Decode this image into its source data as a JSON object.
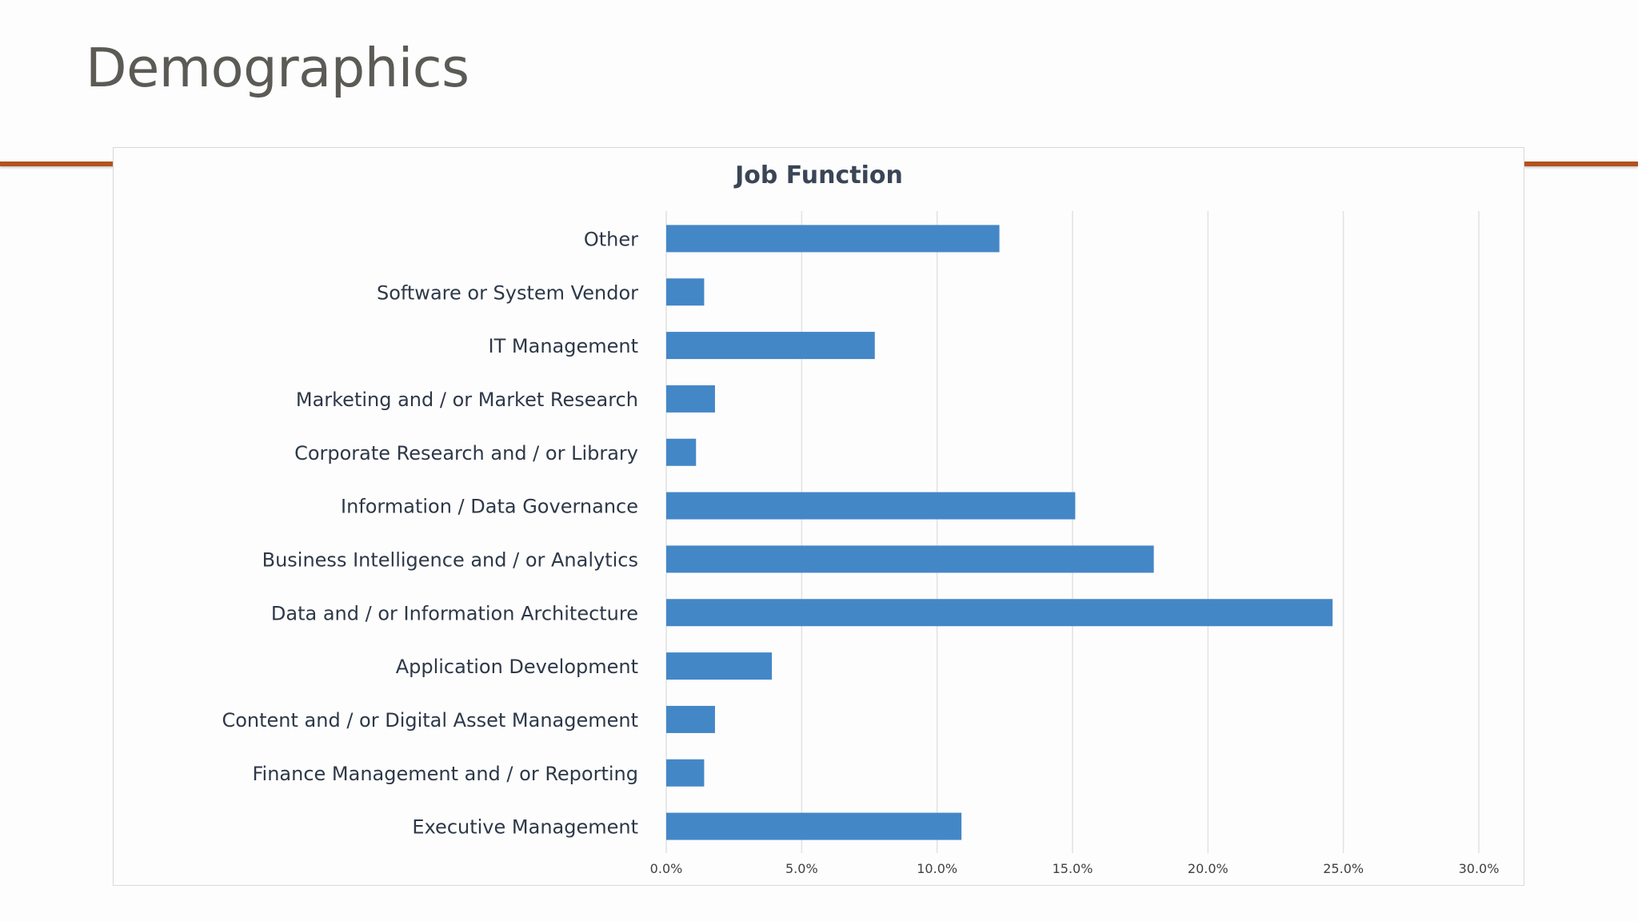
{
  "slide": {
    "title": "Demographics"
  },
  "colors": {
    "bar": "#4487c7",
    "title_text": "#5b5a55",
    "accent_rule": "#b2521e",
    "chart_title": "#3a4556",
    "category_text": "#2d3848",
    "tick_text": "#404040",
    "gridline": "#e2e2e2"
  },
  "chart_data": {
    "type": "bar",
    "orientation": "horizontal",
    "title": "Job Function",
    "xlabel": "",
    "ylabel": "",
    "categories": [
      "Other",
      "Software or System Vendor",
      "IT Management",
      "Marketing and / or Market Research",
      "Corporate Research and / or Library",
      "Information / Data Governance",
      "Business Intelligence and / or Analytics",
      "Data and / or Information Architecture",
      "Application Development",
      "Content and / or Digital Asset Management",
      "Finance Management and / or Reporting",
      "Executive Management"
    ],
    "values": [
      12.3,
      1.4,
      7.7,
      1.8,
      1.1,
      15.1,
      18.0,
      24.6,
      3.9,
      1.8,
      1.4,
      10.9
    ],
    "xlim": [
      0,
      30
    ],
    "xticks": [
      0,
      5,
      10,
      15,
      20,
      25,
      30
    ],
    "xtick_labels": [
      "0.0%",
      "5.0%",
      "10.0%",
      "15.0%",
      "20.0%",
      "25.0%",
      "30.0%"
    ],
    "grid": true,
    "legend": "none"
  }
}
